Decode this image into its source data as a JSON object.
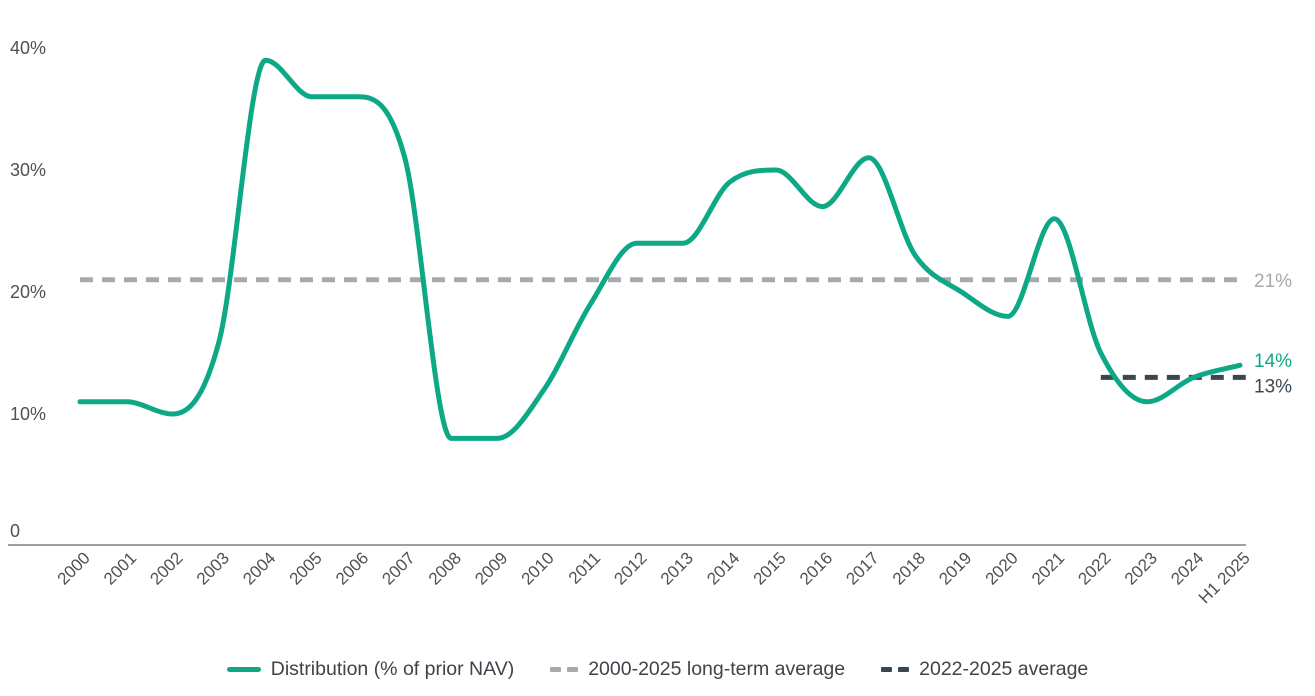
{
  "chart_data": {
    "type": "line",
    "title": "",
    "xlabel": "",
    "ylabel": "",
    "grid": false,
    "legend_position": "bottom",
    "ylim": [
      0,
      41
    ],
    "x_categories": [
      "2000",
      "2001",
      "2002",
      "2003",
      "2004",
      "2005",
      "2006",
      "2007",
      "2008",
      "2009",
      "2010",
      "2011",
      "2012",
      "2013",
      "2014",
      "2015",
      "2016",
      "2017",
      "2018",
      "2019",
      "2020",
      "2021",
      "2022",
      "2023",
      "2024",
      "H1 2025"
    ],
    "yticks": [
      {
        "value": 40,
        "label": "40%"
      },
      {
        "value": 30,
        "label": "30%"
      },
      {
        "value": 20,
        "label": "20%"
      },
      {
        "value": 10,
        "label": "10%"
      },
      {
        "value": 0,
        "label": "0"
      }
    ],
    "series": [
      {
        "name": "Distribution (% of prior NAV)",
        "type": "line",
        "style": "solid",
        "color": "#0DA885",
        "values": [
          11,
          11,
          10,
          16,
          39,
          36,
          36,
          31,
          8,
          8,
          12,
          19,
          24,
          24,
          29,
          30,
          27,
          31,
          23,
          20,
          18,
          26,
          15,
          11,
          13,
          14
        ],
        "end_label": "14%"
      },
      {
        "name": "2000-2025 long-term average",
        "type": "reference-line",
        "style": "dashed",
        "color": "#A7A9AC",
        "value": 21,
        "label": "21%",
        "x_start": "2000",
        "x_end": "H1 2025"
      },
      {
        "name": "2022-2025 average",
        "type": "reference-line",
        "style": "dashed",
        "color": "#3B4750",
        "value": 13,
        "label": "13%",
        "x_start": "2022",
        "x_end": "H1 2025"
      }
    ],
    "colors": {
      "axis_text": "#4D5257",
      "axis_line": "#9EA0A3",
      "legend_text": "#3E4449"
    }
  }
}
